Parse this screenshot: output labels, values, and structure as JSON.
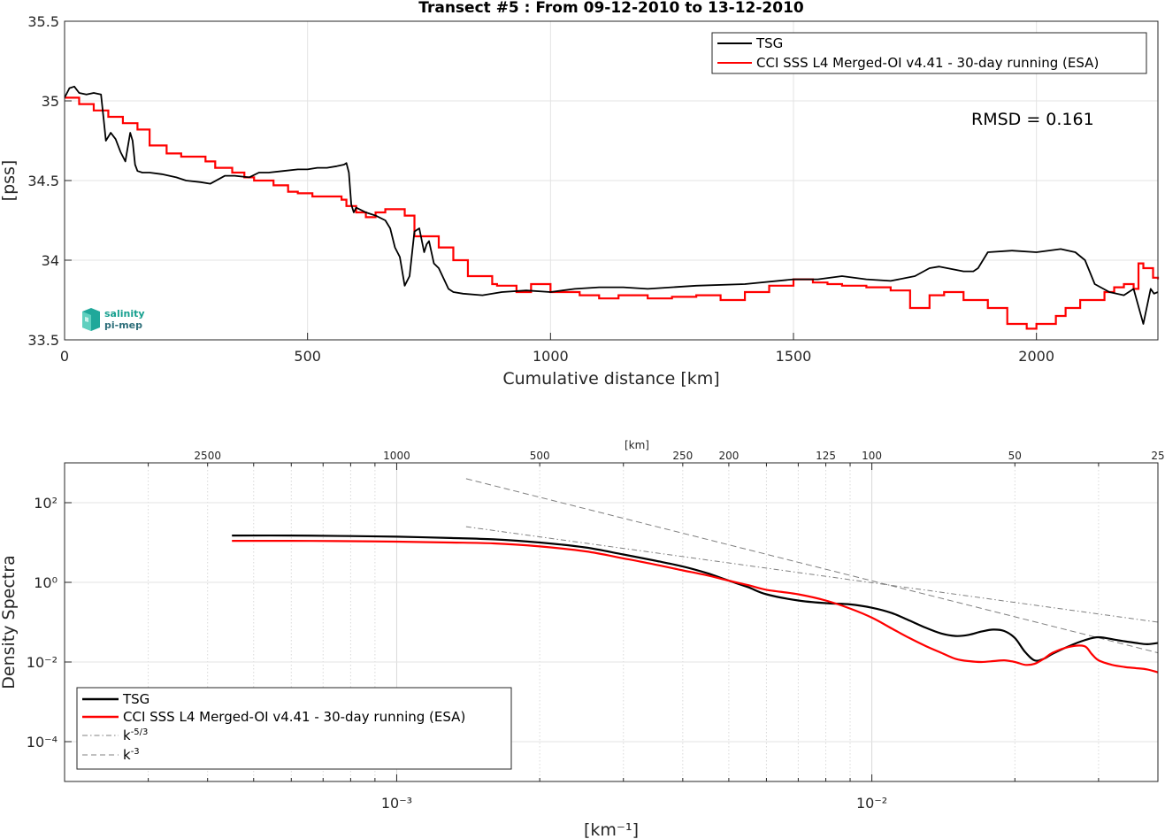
{
  "chart_data": [
    {
      "type": "line",
      "title": "Transect #5 : From 09-12-2010 to 13-12-2010",
      "xlabel": "Cumulative distance [km]",
      "ylabel": "[pss]",
      "xlim": [
        0,
        2250
      ],
      "ylim": [
        33.5,
        35.5
      ],
      "xticks": [
        "0",
        "500",
        "1000",
        "1500",
        "2000"
      ],
      "yticks": [
        "33.5",
        "34",
        "34.5",
        "35",
        "35.5"
      ],
      "grid": true,
      "legend_position": "top-right",
      "annotation": "RMSD = 0.161",
      "logo": "salinity pi-mep",
      "series": [
        {
          "name": "TSG",
          "color": "#000000",
          "x": [
            0,
            10,
            20,
            30,
            45,
            60,
            75,
            80,
            85,
            95,
            105,
            115,
            125,
            135,
            140,
            145,
            150,
            160,
            175,
            200,
            230,
            250,
            280,
            300,
            330,
            350,
            380,
            400,
            420,
            450,
            480,
            500,
            520,
            540,
            560,
            575,
            580,
            585,
            590,
            595,
            600,
            620,
            640,
            660,
            670,
            680,
            690,
            700,
            710,
            720,
            730,
            740,
            745,
            750,
            760,
            770,
            790,
            800,
            820,
            860,
            900,
            950,
            1000,
            1050,
            1100,
            1150,
            1200,
            1300,
            1400,
            1500,
            1550,
            1600,
            1650,
            1700,
            1750,
            1780,
            1800,
            1850,
            1870,
            1880,
            1900,
            1950,
            2000,
            2050,
            2080,
            2100,
            2120,
            2150,
            2180,
            2200,
            2220,
            2235,
            2242,
            2250
          ],
          "y": [
            35.02,
            35.08,
            35.09,
            35.05,
            35.04,
            35.05,
            35.04,
            34.9,
            34.75,
            34.8,
            34.76,
            34.68,
            34.62,
            34.8,
            34.75,
            34.6,
            34.56,
            34.55,
            34.55,
            34.54,
            34.52,
            34.5,
            34.49,
            34.48,
            34.53,
            34.53,
            34.52,
            34.55,
            34.55,
            34.56,
            34.57,
            34.57,
            34.58,
            34.58,
            34.59,
            34.6,
            34.61,
            34.55,
            34.35,
            34.3,
            34.33,
            34.3,
            34.28,
            34.25,
            34.2,
            34.08,
            34.02,
            33.84,
            33.9,
            34.18,
            34.2,
            34.05,
            34.1,
            34.12,
            33.98,
            33.95,
            33.82,
            33.8,
            33.79,
            33.78,
            33.8,
            33.81,
            33.8,
            33.82,
            33.83,
            33.83,
            33.82,
            33.84,
            33.85,
            33.88,
            33.88,
            33.9,
            33.88,
            33.87,
            33.9,
            33.95,
            33.96,
            33.93,
            33.93,
            33.95,
            34.05,
            34.06,
            34.05,
            34.07,
            34.05,
            34.0,
            33.85,
            33.8,
            33.78,
            33.82,
            33.6,
            33.82,
            33.79,
            33.8
          ]
        },
        {
          "name": "CCI SSS L4 Merged-OI v4.41 - 30-day running (ESA)",
          "color": "#ff0000",
          "x": [
            0,
            30,
            60,
            90,
            120,
            150,
            175,
            210,
            240,
            290,
            310,
            345,
            370,
            390,
            430,
            460,
            480,
            510,
            570,
            580,
            600,
            620,
            640,
            660,
            700,
            720,
            770,
            800,
            830,
            880,
            890,
            930,
            960,
            1000,
            1060,
            1100,
            1140,
            1200,
            1250,
            1300,
            1350,
            1400,
            1450,
            1500,
            1540,
            1570,
            1600,
            1650,
            1700,
            1740,
            1780,
            1810,
            1850,
            1900,
            1940,
            1980,
            2000,
            2040,
            2060,
            2090,
            2140,
            2160,
            2180,
            2200,
            2210,
            2220,
            2240,
            2250
          ],
          "y": [
            35.02,
            34.98,
            34.94,
            34.9,
            34.86,
            34.82,
            34.72,
            34.67,
            34.65,
            34.62,
            34.58,
            34.55,
            34.52,
            34.5,
            34.47,
            34.43,
            34.42,
            34.4,
            34.38,
            34.34,
            34.3,
            34.27,
            34.3,
            34.32,
            34.28,
            34.15,
            34.08,
            34.0,
            33.9,
            33.85,
            33.84,
            33.8,
            33.85,
            33.8,
            33.78,
            33.76,
            33.78,
            33.76,
            33.77,
            33.78,
            33.75,
            33.8,
            33.84,
            33.88,
            33.86,
            33.85,
            33.84,
            33.83,
            33.81,
            33.7,
            33.78,
            33.8,
            33.75,
            33.7,
            33.6,
            33.57,
            33.6,
            33.65,
            33.7,
            33.75,
            33.8,
            33.83,
            33.85,
            33.82,
            33.98,
            33.95,
            33.89,
            33.88
          ]
        }
      ]
    },
    {
      "type": "line",
      "xlabel": "[km⁻¹]",
      "ylabel": "Density Spectra",
      "top_axis_label": "[km]",
      "x_scale": "log",
      "y_scale": "log",
      "xlim": [
        0.0002,
        0.04
      ],
      "ylim": [
        1e-05,
        1000
      ],
      "xticks": [
        "10⁻³",
        "10⁻²"
      ],
      "yticks": [
        "10⁻⁴",
        "10⁻²",
        "10⁰",
        "10²"
      ],
      "top_ticks": [
        "2500",
        "1000",
        "500",
        "250",
        "200",
        "125",
        "100",
        "50",
        "25"
      ],
      "top_tick_values_km": [
        2500,
        1000,
        500,
        250,
        200,
        125,
        100,
        50,
        25
      ],
      "grid": true,
      "legend_position": "bottom-left",
      "series": [
        {
          "name": "TSG",
          "color": "#000000",
          "x": [
            0.00045,
            0.0006,
            0.0008,
            0.001,
            0.0013,
            0.0016,
            0.002,
            0.0025,
            0.003,
            0.0035,
            0.004,
            0.0045,
            0.005,
            0.0055,
            0.006,
            0.007,
            0.008,
            0.009,
            0.01,
            0.011,
            0.012,
            0.013,
            0.014,
            0.015,
            0.016,
            0.017,
            0.018,
            0.019,
            0.02,
            0.021,
            0.022,
            0.023,
            0.024,
            0.026,
            0.028,
            0.03,
            0.033,
            0.036,
            0.038,
            0.04
          ],
          "y": [
            15,
            15,
            14.5,
            14,
            13,
            12,
            10,
            7.5,
            5,
            3.5,
            2.5,
            1.7,
            1.1,
            0.75,
            0.5,
            0.35,
            0.3,
            0.28,
            0.23,
            0.17,
            0.11,
            0.072,
            0.052,
            0.045,
            0.048,
            0.058,
            0.065,
            0.06,
            0.04,
            0.018,
            0.011,
            0.012,
            0.016,
            0.025,
            0.035,
            0.042,
            0.035,
            0.03,
            0.028,
            0.03
          ]
        },
        {
          "name": "CCI SSS L4 Merged-OI v4.41 - 30-day running (ESA)",
          "color": "#ff0000",
          "x": [
            0.00045,
            0.0006,
            0.0008,
            0.001,
            0.0013,
            0.0016,
            0.002,
            0.0025,
            0.003,
            0.0035,
            0.004,
            0.0045,
            0.005,
            0.0055,
            0.006,
            0.007,
            0.008,
            0.009,
            0.01,
            0.011,
            0.012,
            0.013,
            0.014,
            0.015,
            0.016,
            0.017,
            0.018,
            0.019,
            0.02,
            0.021,
            0.022,
            0.023,
            0.024,
            0.026,
            0.028,
            0.029,
            0.03,
            0.032,
            0.034,
            0.036,
            0.038,
            0.04
          ],
          "y": [
            11,
            11,
            10.8,
            10.5,
            10,
            9.5,
            8,
            6,
            4,
            2.8,
            2,
            1.5,
            1.1,
            0.85,
            0.65,
            0.5,
            0.35,
            0.22,
            0.13,
            0.07,
            0.04,
            0.025,
            0.017,
            0.012,
            0.0105,
            0.01,
            0.0105,
            0.011,
            0.01,
            0.0085,
            0.009,
            0.012,
            0.017,
            0.024,
            0.025,
            0.016,
            0.011,
            0.0085,
            0.0075,
            0.007,
            0.0065,
            0.0055
          ]
        },
        {
          "name": "k⁻⁵ᐟ³",
          "legend_base": "k",
          "legend_exp": "-5/3",
          "color": "#808080",
          "style": "dash-dot",
          "x": [
            0.0014,
            0.04
          ],
          "y": [
            25,
            0.1
          ]
        },
        {
          "name": "k⁻³",
          "legend_base": "k",
          "legend_exp": "-3",
          "color": "#808080",
          "style": "dashed",
          "x": [
            0.0014,
            0.04
          ],
          "y": [
            400,
            0.017
          ]
        }
      ]
    }
  ]
}
